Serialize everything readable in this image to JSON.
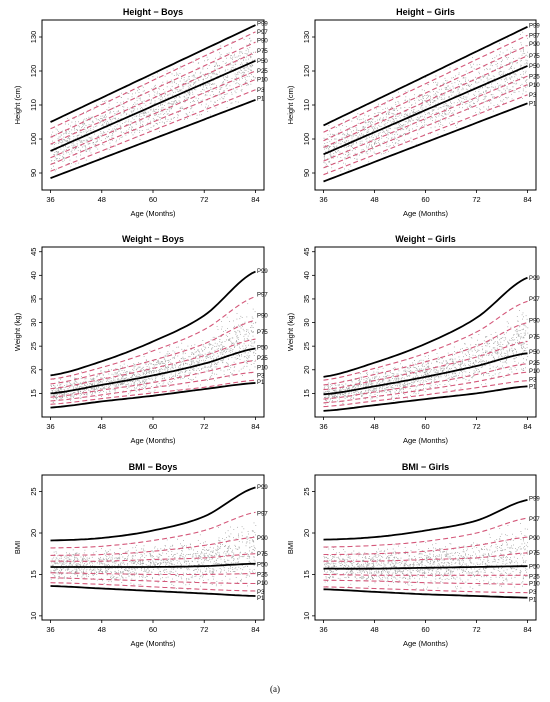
{
  "caption": "(a)",
  "colors": {
    "median": "#000000",
    "inner": "#d4587a",
    "dots": "#9a9a9a",
    "frame": "#000000"
  },
  "chart_data": [
    {
      "type": "line",
      "title": "Height − Boys",
      "xlabel": "Age (Months)",
      "ylabel": "Height (cm)",
      "xlim": [
        34,
        86
      ],
      "ylim": [
        85,
        135
      ],
      "xticks": [
        36,
        48,
        60,
        72,
        84
      ],
      "yticks": [
        90,
        100,
        110,
        120,
        130
      ],
      "x": [
        36,
        84
      ],
      "scatter_spread": "band",
      "series": [
        {
          "name": "P99",
          "values": [
            105.0,
            133.5
          ],
          "label_y": 134.0,
          "style": "solid"
        },
        {
          "name": "P97",
          "values": [
            103.0,
            131.5
          ],
          "label_y": 131.5,
          "style": "dash"
        },
        {
          "name": "P90",
          "values": [
            100.5,
            128.5
          ],
          "label_y": 129.0,
          "style": "dash"
        },
        {
          "name": "P75",
          "values": [
            98.5,
            125.5
          ],
          "label_y": 126.0,
          "style": "dash"
        },
        {
          "name": "P50",
          "values": [
            96.5,
            123.0
          ],
          "label_y": 123.0,
          "style": "solid"
        },
        {
          "name": "P25",
          "values": [
            94.5,
            120.0
          ],
          "label_y": 120.0,
          "style": "dash"
        },
        {
          "name": "P10",
          "values": [
            92.5,
            117.5
          ],
          "label_y": 117.5,
          "style": "dash"
        },
        {
          "name": "P3",
          "values": [
            90.5,
            114.5
          ],
          "label_y": 114.5,
          "style": "dash"
        },
        {
          "name": "P1",
          "values": [
            88.5,
            111.5
          ],
          "label_y": 112.0,
          "style": "solid"
        }
      ]
    },
    {
      "type": "line",
      "title": "Height − Girls",
      "xlabel": "Age (Months)",
      "ylabel": "Height (cm)",
      "xlim": [
        34,
        86
      ],
      "ylim": [
        85,
        135
      ],
      "xticks": [
        36,
        48,
        60,
        72,
        84
      ],
      "yticks": [
        90,
        100,
        110,
        120,
        130
      ],
      "x": [
        36,
        84
      ],
      "scatter_spread": "band",
      "series": [
        {
          "name": "P99",
          "values": [
            104.0,
            133.0
          ],
          "label_y": 133.5,
          "style": "solid"
        },
        {
          "name": "P97",
          "values": [
            102.0,
            130.5
          ],
          "label_y": 130.5,
          "style": "dash"
        },
        {
          "name": "P90",
          "values": [
            99.5,
            127.5
          ],
          "label_y": 128.0,
          "style": "dash"
        },
        {
          "name": "P75",
          "values": [
            97.5,
            124.5
          ],
          "label_y": 124.5,
          "style": "dash"
        },
        {
          "name": "P50",
          "values": [
            95.5,
            121.5
          ],
          "label_y": 121.5,
          "style": "solid"
        },
        {
          "name": "P25",
          "values": [
            93.5,
            118.5
          ],
          "label_y": 118.5,
          "style": "dash"
        },
        {
          "name": "P10",
          "values": [
            91.5,
            116.0
          ],
          "label_y": 116.0,
          "style": "dash"
        },
        {
          "name": "P3",
          "values": [
            89.5,
            113.0
          ],
          "label_y": 113.0,
          "style": "dash"
        },
        {
          "name": "P1",
          "values": [
            87.5,
            110.5
          ],
          "label_y": 110.5,
          "style": "solid"
        }
      ]
    },
    {
      "type": "line",
      "title": "Weight − Boys",
      "xlabel": "Age (Months)",
      "ylabel": "Weight (kg)",
      "xlim": [
        34,
        86
      ],
      "ylim": [
        10,
        46
      ],
      "xticks": [
        36,
        48,
        60,
        72,
        84
      ],
      "yticks": [
        15,
        20,
        25,
        30,
        35,
        40,
        45
      ],
      "x": [
        36,
        48,
        60,
        72,
        84
      ],
      "scatter_spread": "inner",
      "series": [
        {
          "name": "P99",
          "values": [
            18.8,
            21.8,
            26.0,
            31.5,
            40.8
          ],
          "label_y": 41.0,
          "style": "solid"
        },
        {
          "name": "P97",
          "values": [
            18.0,
            20.5,
            24.0,
            28.5,
            35.5
          ],
          "label_y": 36.0,
          "style": "dash"
        },
        {
          "name": "P90",
          "values": [
            17.0,
            19.3,
            22.0,
            25.5,
            30.5
          ],
          "label_y": 31.5,
          "style": "dash"
        },
        {
          "name": "P75",
          "values": [
            16.0,
            18.0,
            20.3,
            23.0,
            26.5
          ],
          "label_y": 28.0,
          "style": "dash"
        },
        {
          "name": "P50",
          "values": [
            15.0,
            16.8,
            18.8,
            21.3,
            24.5
          ],
          "label_y": 24.8,
          "style": "solid"
        },
        {
          "name": "P25",
          "values": [
            14.2,
            15.7,
            17.3,
            19.5,
            22.0
          ],
          "label_y": 22.5,
          "style": "dash"
        },
        {
          "name": "P10",
          "values": [
            13.4,
            14.7,
            16.2,
            17.8,
            19.5
          ],
          "label_y": 20.5,
          "style": "dash"
        },
        {
          "name": "P3",
          "values": [
            12.7,
            13.9,
            15.1,
            16.3,
            17.8
          ],
          "label_y": 18.8,
          "style": "dash"
        },
        {
          "name": "P1",
          "values": [
            12.0,
            13.3,
            14.5,
            15.9,
            17.2
          ],
          "label_y": 17.5,
          "style": "solid"
        }
      ]
    },
    {
      "type": "line",
      "title": "Weight − Girls",
      "xlabel": "Age (Months)",
      "ylabel": "Weight (kg)",
      "xlim": [
        34,
        86
      ],
      "ylim": [
        10,
        46
      ],
      "xticks": [
        36,
        48,
        60,
        72,
        84
      ],
      "yticks": [
        15,
        20,
        25,
        30,
        35,
        40,
        45
      ],
      "x": [
        36,
        48,
        60,
        72,
        84
      ],
      "scatter_spread": "inner",
      "series": [
        {
          "name": "P99",
          "values": [
            18.5,
            21.5,
            25.5,
            31.0,
            39.5
          ],
          "label_y": 39.5,
          "style": "solid"
        },
        {
          "name": "P97",
          "values": [
            17.8,
            20.3,
            23.5,
            28.0,
            34.5
          ],
          "label_y": 35.0,
          "style": "dash"
        },
        {
          "name": "P90",
          "values": [
            16.8,
            19.0,
            21.7,
            25.0,
            30.0
          ],
          "label_y": 30.5,
          "style": "dash"
        },
        {
          "name": "P75",
          "values": [
            15.8,
            17.7,
            20.0,
            22.7,
            26.0
          ],
          "label_y": 27.0,
          "style": "dash"
        },
        {
          "name": "P50",
          "values": [
            14.8,
            16.5,
            18.5,
            20.8,
            23.5
          ],
          "label_y": 23.8,
          "style": "solid"
        },
        {
          "name": "P25",
          "values": [
            13.8,
            15.3,
            17.0,
            19.0,
            21.3
          ],
          "label_y": 21.5,
          "style": "dash"
        },
        {
          "name": "P10",
          "values": [
            13.0,
            14.3,
            15.8,
            17.5,
            19.5
          ],
          "label_y": 19.8,
          "style": "dash"
        },
        {
          "name": "P3",
          "values": [
            12.2,
            13.4,
            14.7,
            16.2,
            17.7
          ],
          "label_y": 18.0,
          "style": "dash"
        },
        {
          "name": "P1",
          "values": [
            11.3,
            12.5,
            13.8,
            15.0,
            16.5
          ],
          "label_y": 16.5,
          "style": "solid"
        }
      ]
    },
    {
      "type": "line",
      "title": "BMI − Boys",
      "xlabel": "Age (Months)",
      "ylabel": "BMI",
      "xlim": [
        34,
        86
      ],
      "ylim": [
        9.5,
        27
      ],
      "xticks": [
        36,
        48,
        60,
        72,
        84
      ],
      "yticks": [
        10,
        15,
        20,
        25
      ],
      "x": [
        36,
        48,
        60,
        72,
        84
      ],
      "scatter_spread": "inner",
      "series": [
        {
          "name": "P99",
          "values": [
            19.1,
            19.4,
            20.3,
            22.0,
            25.5
          ],
          "label_y": 25.6,
          "style": "solid"
        },
        {
          "name": "P97",
          "values": [
            18.2,
            18.4,
            19.1,
            20.3,
            22.5
          ],
          "label_y": 22.4,
          "style": "dash"
        },
        {
          "name": "P90",
          "values": [
            17.3,
            17.4,
            17.8,
            18.5,
            19.5
          ],
          "label_y": 19.4,
          "style": "dash"
        },
        {
          "name": "P75",
          "values": [
            16.6,
            16.6,
            16.8,
            17.0,
            17.5
          ],
          "label_y": 17.5,
          "style": "dash"
        },
        {
          "name": "P50",
          "values": [
            15.9,
            15.9,
            15.9,
            16.0,
            16.3
          ],
          "label_y": 16.2,
          "style": "solid"
        },
        {
          "name": "P25",
          "values": [
            15.2,
            15.1,
            15.0,
            15.0,
            15.1
          ],
          "label_y": 15.0,
          "style": "dash"
        },
        {
          "name": "P10",
          "values": [
            14.6,
            14.4,
            14.2,
            14.0,
            13.9
          ],
          "label_y": 14.0,
          "style": "dash"
        },
        {
          "name": "P3",
          "values": [
            14.0,
            13.8,
            13.5,
            13.2,
            13.0
          ],
          "label_y": 12.9,
          "style": "dash"
        },
        {
          "name": "P1",
          "values": [
            13.6,
            13.3,
            13.0,
            12.7,
            12.4
          ],
          "label_y": 12.2,
          "style": "solid"
        }
      ]
    },
    {
      "type": "line",
      "title": "BMI − Girls",
      "xlabel": "Age (Months)",
      "ylabel": "BMI",
      "xlim": [
        34,
        86
      ],
      "ylim": [
        9.5,
        27
      ],
      "xticks": [
        36,
        48,
        60,
        72,
        84
      ],
      "yticks": [
        10,
        15,
        20,
        25
      ],
      "x": [
        36,
        48,
        60,
        72,
        84
      ],
      "scatter_spread": "inner",
      "series": [
        {
          "name": "P99",
          "values": [
            19.2,
            19.5,
            20.3,
            21.5,
            24.0
          ],
          "label_y": 24.2,
          "style": "solid"
        },
        {
          "name": "P97",
          "values": [
            18.3,
            18.5,
            19.0,
            20.0,
            21.8
          ],
          "label_y": 21.7,
          "style": "dash"
        },
        {
          "name": "P90",
          "values": [
            17.4,
            17.5,
            17.8,
            18.5,
            19.5
          ],
          "label_y": 19.4,
          "style": "dash"
        },
        {
          "name": "P75",
          "values": [
            16.6,
            16.6,
            16.8,
            17.0,
            17.6
          ],
          "label_y": 17.6,
          "style": "dash"
        },
        {
          "name": "P50",
          "values": [
            15.7,
            15.7,
            15.8,
            15.9,
            16.0
          ],
          "label_y": 16.0,
          "style": "solid"
        },
        {
          "name": "P25",
          "values": [
            15.0,
            14.9,
            14.9,
            14.9,
            14.9
          ],
          "label_y": 14.8,
          "style": "dash"
        },
        {
          "name": "P10",
          "values": [
            14.3,
            14.2,
            14.0,
            13.9,
            13.8
          ],
          "label_y": 13.9,
          "style": "dash"
        },
        {
          "name": "P3",
          "values": [
            13.5,
            13.3,
            13.1,
            12.9,
            12.8
          ],
          "label_y": 12.9,
          "style": "dash"
        },
        {
          "name": "P1",
          "values": [
            13.2,
            12.9,
            12.6,
            12.4,
            12.2
          ],
          "label_y": 12.0,
          "style": "solid"
        }
      ]
    }
  ]
}
